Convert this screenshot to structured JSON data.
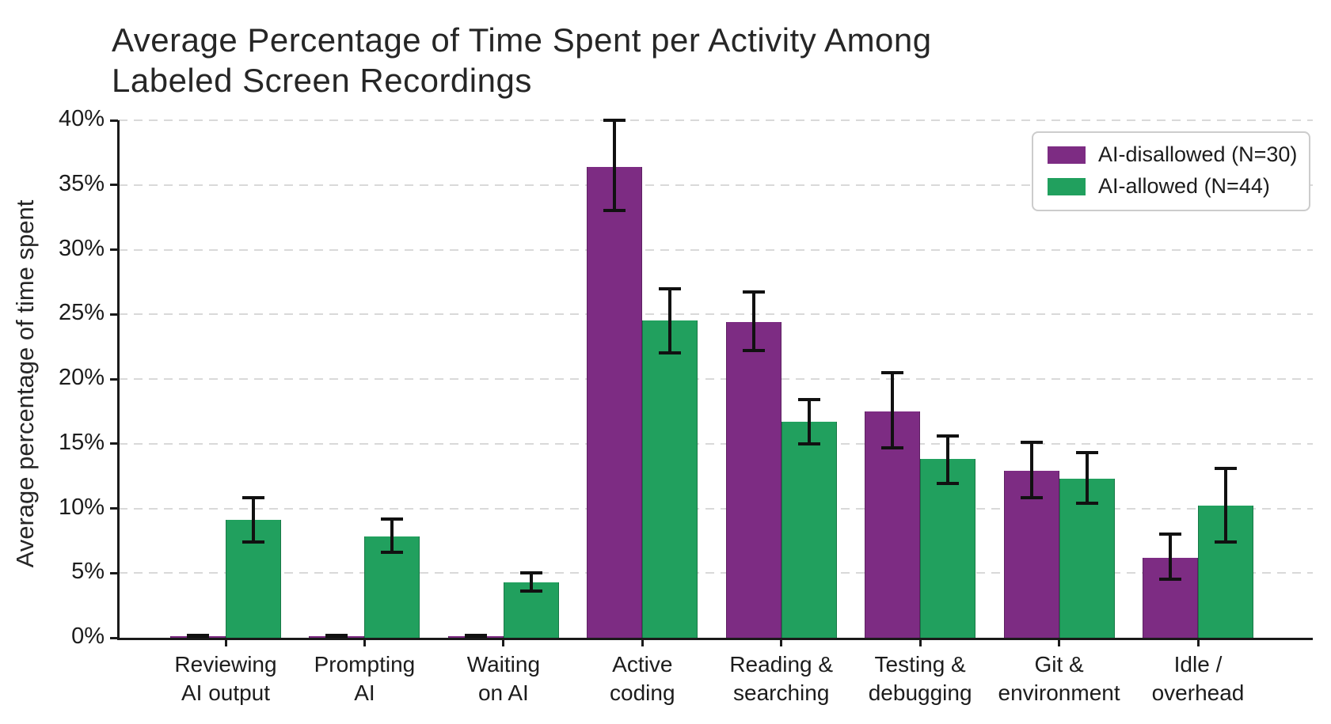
{
  "chart_data": {
    "type": "bar",
    "title_lines": [
      "Average Percentage of Time Spent per Activity Among",
      "Labeled Screen Recordings"
    ],
    "ylabel": "Average percentage of time spent",
    "xlabel": "",
    "ylim": [
      0,
      40
    ],
    "yticks": [
      "0%",
      "5%",
      "10%",
      "15%",
      "20%",
      "25%",
      "30%",
      "35%",
      "40%"
    ],
    "grid": "horizontal-dashed",
    "legend_position": "top-right",
    "categories": [
      "Reviewing\nAI output",
      "Prompting\nAI",
      "Waiting\non AI",
      "Active\ncoding",
      "Reading &\nsearching",
      "Testing &\ndebugging",
      "Git &\nenvironment",
      "Idle /\noverhead"
    ],
    "series": [
      {
        "name": "AI-disallowed (N=30)",
        "color": "#7d2c83",
        "values": [
          0.1,
          0.1,
          0.1,
          36.4,
          24.4,
          17.5,
          12.9,
          6.2
        ],
        "err_lo": [
          0.0,
          0.0,
          0.0,
          33.0,
          22.2,
          14.7,
          10.8,
          4.5
        ],
        "err_hi": [
          0.2,
          0.2,
          0.2,
          40.0,
          26.7,
          20.5,
          15.1,
          8.0
        ]
      },
      {
        "name": "AI-allowed (N=44)",
        "color": "#21a05e",
        "values": [
          9.1,
          7.8,
          4.3,
          24.5,
          16.7,
          13.8,
          12.3,
          10.2
        ],
        "err_lo": [
          7.4,
          6.6,
          3.6,
          22.0,
          15.0,
          11.9,
          10.4,
          7.4
        ],
        "err_hi": [
          10.8,
          9.2,
          5.0,
          27.0,
          18.4,
          15.6,
          14.3,
          13.1
        ]
      }
    ],
    "colors": {
      "grid": "#d9d9d9",
      "axis": "#1a1a1a",
      "error_bar": "#111111",
      "text": "#262626"
    }
  }
}
